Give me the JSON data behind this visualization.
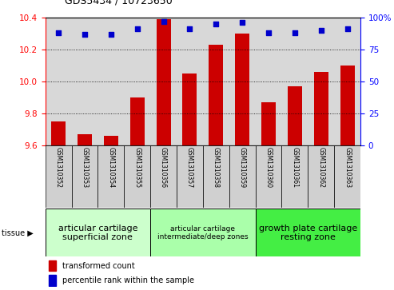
{
  "title": "GDS5434 / 10723650",
  "samples": [
    "GSM1310352",
    "GSM1310353",
    "GSM1310354",
    "GSM1310355",
    "GSM1310356",
    "GSM1310357",
    "GSM1310358",
    "GSM1310359",
    "GSM1310360",
    "GSM1310361",
    "GSM1310362",
    "GSM1310363"
  ],
  "transformed_counts": [
    9.75,
    9.67,
    9.66,
    9.9,
    10.39,
    10.05,
    10.23,
    10.3,
    9.87,
    9.97,
    10.06,
    10.1
  ],
  "percentile_ranks": [
    88,
    87,
    87,
    91,
    97,
    91,
    95,
    96,
    88,
    88,
    90,
    91
  ],
  "ylim_left": [
    9.6,
    10.4
  ],
  "ylim_right": [
    0,
    100
  ],
  "yticks_left": [
    9.6,
    9.8,
    10.0,
    10.2,
    10.4
  ],
  "yticks_right": [
    0,
    25,
    50,
    75,
    100
  ],
  "ytick_labels_right": [
    "0",
    "25",
    "50",
    "75",
    "100%"
  ],
  "bar_color": "#cc0000",
  "dot_color": "#0000cc",
  "tissue_groups": [
    {
      "label": "articular cartilage\nsuperficial zone",
      "start": 0,
      "end": 4,
      "color": "#ccffcc",
      "fontsize": 8
    },
    {
      "label": "articular cartilage\nintermediate/deep zones",
      "start": 4,
      "end": 8,
      "color": "#aaffaa",
      "fontsize": 6.5
    },
    {
      "label": "growth plate cartilage\nresting zone",
      "start": 8,
      "end": 12,
      "color": "#44ee44",
      "fontsize": 8
    }
  ],
  "legend_red_label": "transformed count",
  "legend_blue_label": "percentile rank within the sample",
  "bar_width": 0.55,
  "bg_color_plot": "#d8d8d8",
  "sample_bg_color": "#d0d0d0"
}
